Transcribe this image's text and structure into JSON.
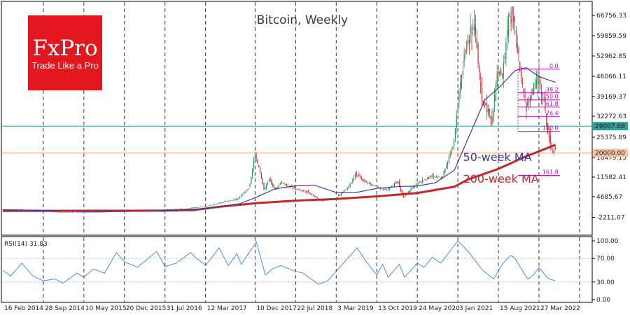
{
  "logo": {
    "brand": "FxPro",
    "tagline": "Trade Like a Pro",
    "color": "#e2171f"
  },
  "colors": {
    "up": "#2e8b57",
    "down": "#c62828",
    "ma50": "#3a3aa0",
    "ma200": "#c0282b",
    "fib": "#c000c0",
    "rsi": "#4a8fd0",
    "hline_current": "#2aa198",
    "hline_20000": "#f0a080"
  },
  "chart_data": {
    "type": "line",
    "title": "Bitcoin, Weekly",
    "price_axis": {
      "scale": "pseudo-log",
      "ticks": [
        "66756.33",
        "59859.59",
        "52962.85",
        "46066.11",
        "39169.37",
        "32272.63",
        "25375.89",
        "18479.15",
        "11582.41",
        "4685.67",
        "-2211.07"
      ],
      "range": [
        -2211.07,
        70000
      ]
    },
    "x_axis": {
      "ticks": [
        "16 Feb 2014",
        "28 Sep 2014",
        "10 May 2015",
        "20 Dec 2015",
        "31 Jul 2016",
        "12 Mar 2017",
        "10 Dec 2017",
        "22 Jul 2018",
        "3 Mar 2019",
        "13 Oct 2019",
        "24 May 2020",
        "3 Jan 2021",
        "15 Aug 2021",
        "27 Mar 2022"
      ],
      "range": [
        "2014-02-16",
        "2023-01-15"
      ]
    },
    "series": [
      {
        "kind": "candles",
        "points": [
          [
            "2014-02-16",
            600
          ],
          [
            "2014-06-01",
            620
          ],
          [
            "2014-09-28",
            400
          ],
          [
            "2015-01-15",
            230
          ],
          [
            "2015-05-10",
            240
          ],
          [
            "2015-09-01",
            240
          ],
          [
            "2015-12-20",
            440
          ],
          [
            "2016-04-01",
            420
          ],
          [
            "2016-07-31",
            620
          ],
          [
            "2016-12-01",
            760
          ],
          [
            "2017-03-12",
            1200
          ],
          [
            "2017-06-15",
            2600
          ],
          [
            "2017-09-15",
            4000
          ],
          [
            "2017-11-15",
            8000
          ],
          [
            "2017-12-17",
            19500
          ],
          [
            "2018-01-10",
            14000
          ],
          [
            "2018-02-05",
            7000
          ],
          [
            "2018-03-05",
            11000
          ],
          [
            "2018-04-05",
            7000
          ],
          [
            "2018-05-05",
            9800
          ],
          [
            "2018-07-22",
            7600
          ],
          [
            "2018-10-01",
            6500
          ],
          [
            "2018-12-15",
            3300
          ],
          [
            "2019-03-03",
            3900
          ],
          [
            "2019-05-15",
            8000
          ],
          [
            "2019-06-26",
            13000
          ],
          [
            "2019-08-01",
            10500
          ],
          [
            "2019-10-13",
            8300
          ],
          [
            "2019-12-15",
            7100
          ],
          [
            "2020-02-15",
            10000
          ],
          [
            "2020-03-15",
            4500
          ],
          [
            "2020-05-24",
            9200
          ],
          [
            "2020-08-15",
            11800
          ],
          [
            "2020-10-15",
            11500
          ],
          [
            "2020-12-15",
            23000
          ],
          [
            "2021-01-03",
            33000
          ],
          [
            "2021-02-20",
            56000
          ],
          [
            "2021-04-14",
            64000
          ],
          [
            "2021-05-20",
            38000
          ],
          [
            "2021-07-20",
            31000
          ],
          [
            "2021-08-15",
            47000
          ],
          [
            "2021-09-10",
            46000
          ],
          [
            "2021-10-20",
            66000
          ],
          [
            "2021-11-10",
            68000
          ],
          [
            "2021-12-20",
            47000
          ],
          [
            "2022-01-24",
            35000
          ],
          [
            "2022-03-27",
            46000
          ],
          [
            "2022-05-01",
            38000
          ],
          [
            "2022-05-15",
            29000
          ],
          [
            "2022-06-18",
            20000
          ],
          [
            "2022-06-26",
            21300
          ]
        ]
      },
      {
        "name": "50-week MA",
        "points": [
          [
            "2014-02-16",
            600
          ],
          [
            "2014-09-28",
            500
          ],
          [
            "2015-05-10",
            300
          ],
          [
            "2015-12-20",
            320
          ],
          [
            "2016-07-31",
            480
          ],
          [
            "2017-03-12",
            800
          ],
          [
            "2017-09-15",
            2200
          ],
          [
            "2017-12-10",
            4300
          ],
          [
            "2018-04-01",
            7500
          ],
          [
            "2018-07-22",
            8500
          ],
          [
            "2018-11-01",
            8800
          ],
          [
            "2019-03-03",
            6200
          ],
          [
            "2019-06-15",
            6100
          ],
          [
            "2019-10-13",
            7600
          ],
          [
            "2020-02-15",
            8300
          ],
          [
            "2020-05-24",
            8400
          ],
          [
            "2020-09-01",
            9600
          ],
          [
            "2020-12-15",
            14000
          ],
          [
            "2021-03-01",
            25000
          ],
          [
            "2021-06-01",
            38000
          ],
          [
            "2021-08-15",
            42000
          ],
          [
            "2021-11-15",
            48000
          ],
          [
            "2022-01-15",
            49000
          ],
          [
            "2022-03-27",
            46000
          ],
          [
            "2022-06-26",
            44000
          ]
        ]
      },
      {
        "name": "200-week MA",
        "points": [
          [
            "2014-02-16",
            420
          ],
          [
            "2015-01-01",
            430
          ],
          [
            "2016-01-01",
            440
          ],
          [
            "2016-07-31",
            450
          ],
          [
            "2017-01-01",
            520
          ],
          [
            "2017-06-01",
            1200
          ],
          [
            "2018-01-01",
            2500
          ],
          [
            "2018-07-22",
            3300
          ],
          [
            "2019-03-03",
            3900
          ],
          [
            "2019-10-13",
            4800
          ],
          [
            "2020-05-24",
            6000
          ],
          [
            "2020-12-15",
            8200
          ],
          [
            "2021-03-01",
            10800
          ],
          [
            "2021-08-15",
            14500
          ],
          [
            "2022-01-01",
            18500
          ],
          [
            "2022-06-26",
            22800
          ]
        ]
      }
    ],
    "horizontal_lines": [
      {
        "label": "29007.68",
        "y": 29007.68
      },
      {
        "label": "20000.00",
        "y": 20000.0
      }
    ],
    "fibonacci": {
      "start_date": "2021-12-01",
      "end_date": "2022-07-20",
      "levels": [
        {
          "label": "0.0",
          "y": 48500
        },
        {
          "label": "38.2",
          "y": 40500
        },
        {
          "label": "50.0",
          "y": 38000
        },
        {
          "label": "61.8",
          "y": 35500
        },
        {
          "label": "76.4",
          "y": 32200
        },
        {
          "label": "100.0",
          "y": 27300
        },
        {
          "label": "161.8",
          "y": 12200
        }
      ]
    },
    "annotations": [
      {
        "text": "50-week MA",
        "x": "2021-02-01",
        "y": 17200
      },
      {
        "text": "200-week MA",
        "x": "2021-02-01",
        "y": 9600
      }
    ],
    "rsi": {
      "title": "RSI(14) 31.83",
      "ticks": [
        "100.00",
        "70.00",
        "30.00",
        "0.00"
      ],
      "levels": [
        70,
        30
      ],
      "points": [
        [
          "2014-02-16",
          50
        ],
        [
          "2014-04-01",
          40
        ],
        [
          "2014-06-01",
          62
        ],
        [
          "2014-08-01",
          40
        ],
        [
          "2014-09-28",
          32
        ],
        [
          "2014-12-01",
          35
        ],
        [
          "2015-01-15",
          28
        ],
        [
          "2015-04-01",
          45
        ],
        [
          "2015-05-10",
          38
        ],
        [
          "2015-07-01",
          52
        ],
        [
          "2015-09-01",
          45
        ],
        [
          "2015-11-05",
          80
        ],
        [
          "2015-12-20",
          64
        ],
        [
          "2016-03-01",
          55
        ],
        [
          "2016-06-15",
          82
        ],
        [
          "2016-07-31",
          56
        ],
        [
          "2016-10-01",
          62
        ],
        [
          "2016-12-20",
          80
        ],
        [
          "2017-01-15",
          72
        ],
        [
          "2017-03-12",
          58
        ],
        [
          "2017-05-25",
          88
        ],
        [
          "2017-07-15",
          58
        ],
        [
          "2017-09-01",
          78
        ],
        [
          "2017-09-25",
          60
        ],
        [
          "2017-12-17",
          98
        ],
        [
          "2018-02-05",
          42
        ],
        [
          "2018-03-15",
          52
        ],
        [
          "2018-05-01",
          58
        ],
        [
          "2018-07-22",
          48
        ],
        [
          "2018-09-01",
          45
        ],
        [
          "2018-11-25",
          26
        ],
        [
          "2019-01-15",
          32
        ],
        [
          "2019-03-03",
          48
        ],
        [
          "2019-06-26",
          88
        ],
        [
          "2019-08-15",
          65
        ],
        [
          "2019-10-13",
          42
        ],
        [
          "2019-11-15",
          60
        ],
        [
          "2019-12-15",
          38
        ],
        [
          "2020-02-15",
          60
        ],
        [
          "2020-03-15",
          38
        ],
        [
          "2020-05-24",
          62
        ],
        [
          "2020-07-01",
          55
        ],
        [
          "2020-08-15",
          72
        ],
        [
          "2020-10-01",
          62
        ],
        [
          "2021-01-03",
          100
        ],
        [
          "2021-03-01",
          82
        ],
        [
          "2021-05-20",
          50
        ],
        [
          "2021-07-20",
          35
        ],
        [
          "2021-09-10",
          62
        ],
        [
          "2021-10-20",
          75
        ],
        [
          "2021-11-10",
          72
        ],
        [
          "2022-01-24",
          35
        ],
        [
          "2022-02-25",
          42
        ],
        [
          "2022-03-27",
          55
        ],
        [
          "2022-05-15",
          36
        ],
        [
          "2022-06-26",
          31.83
        ]
      ]
    }
  }
}
